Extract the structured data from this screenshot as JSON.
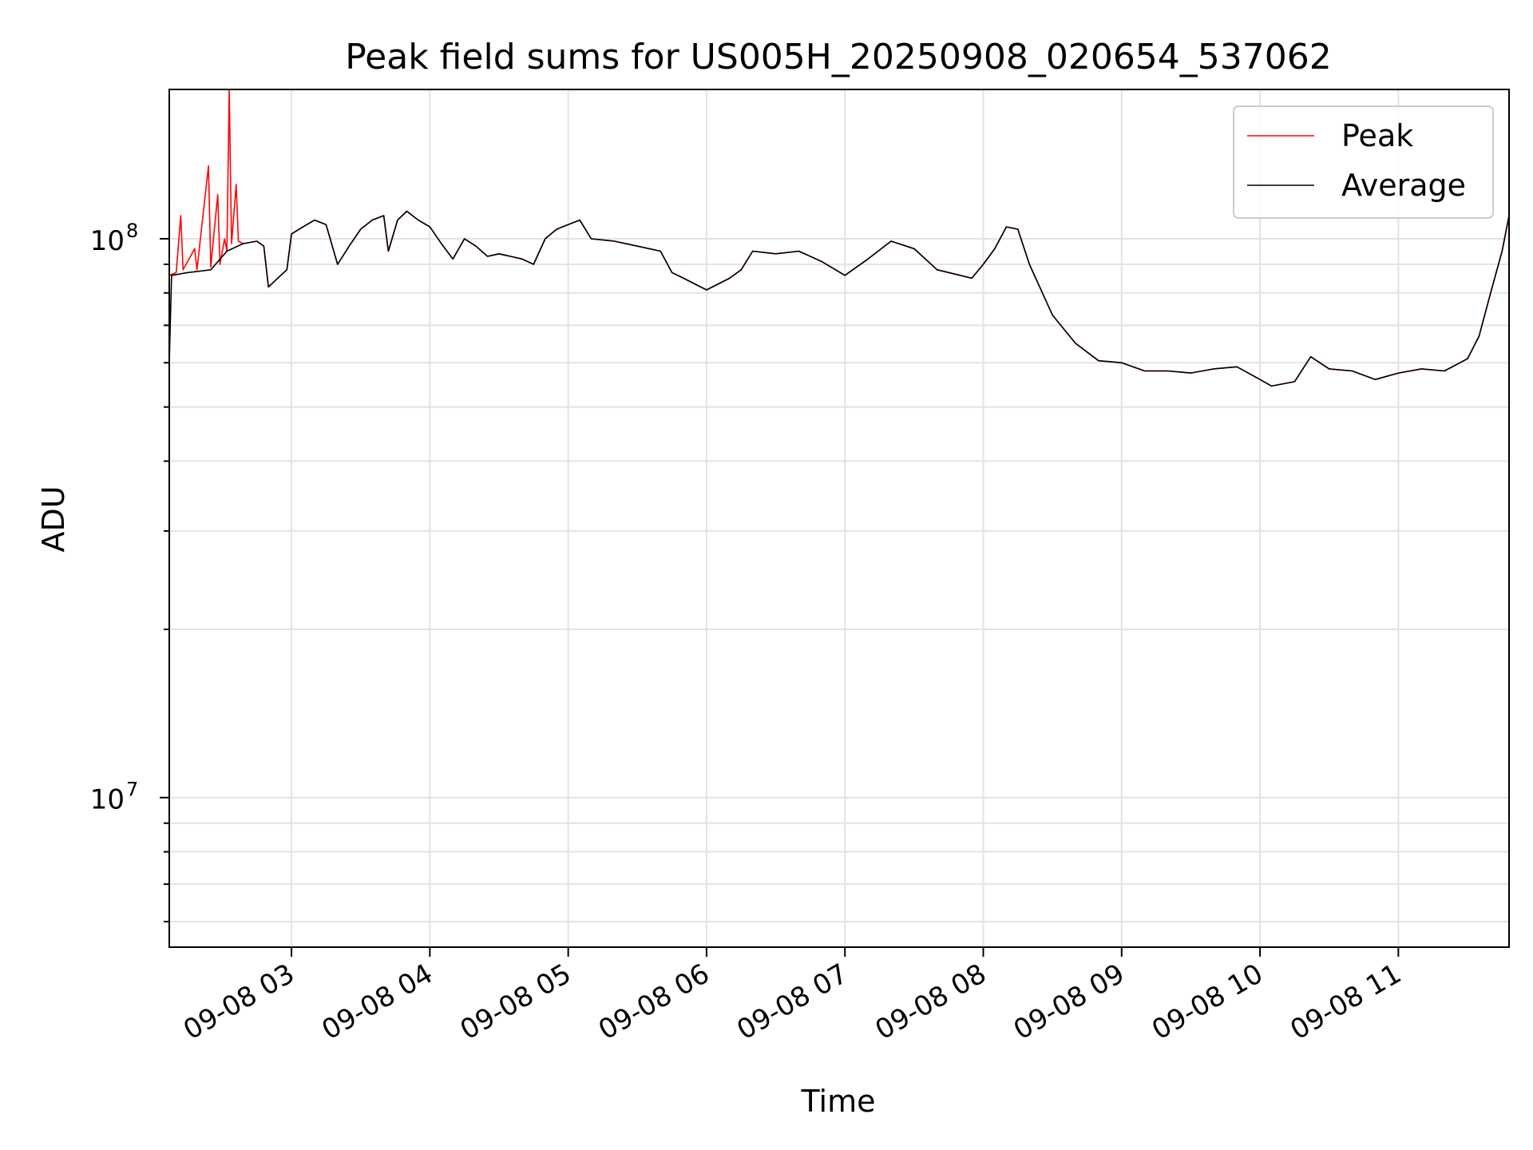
{
  "chart_data": {
    "type": "line",
    "title": "Peak field sums for US005H_20250908_020654_537062",
    "xlabel": "Time",
    "ylabel": "ADU",
    "yscale": "log",
    "ylim": [
      5400000,
      185000000
    ],
    "xlim": [
      "2025-09-08T02:07:00",
      "2025-09-08T11:48:00"
    ],
    "grid": true,
    "legend": "top-right",
    "x_ticks": [
      "09-08 03",
      "09-08 04",
      "09-08 05",
      "09-08 06",
      "09-08 07",
      "09-08 08",
      "09-08 09",
      "09-08 10",
      "09-08 11"
    ],
    "y_ticks": [
      {
        "base": "10",
        "exp": "7",
        "value": 10000000
      },
      {
        "base": "10",
        "exp": "8",
        "value": 100000000
      }
    ],
    "series": [
      {
        "name": "Peak",
        "color": "#ff0000",
        "points": [
          [
            "2025-09-08T02:07:00",
            86000000
          ],
          [
            "2025-09-08T02:10:00",
            87000000
          ],
          [
            "2025-09-08T02:12:00",
            110000000
          ],
          [
            "2025-09-08T02:13:00",
            88000000
          ],
          [
            "2025-09-08T02:18:00",
            96000000
          ],
          [
            "2025-09-08T02:19:00",
            88000000
          ],
          [
            "2025-09-08T02:24:00",
            135000000
          ],
          [
            "2025-09-08T02:25:00",
            89000000
          ],
          [
            "2025-09-08T02:28:00",
            120000000
          ],
          [
            "2025-09-08T02:29:00",
            90000000
          ],
          [
            "2025-09-08T02:31:00",
            100000000
          ],
          [
            "2025-09-08T02:32:00",
            95000000
          ],
          [
            "2025-09-08T02:33:00",
            185000000
          ],
          [
            "2025-09-08T02:34:00",
            98000000
          ],
          [
            "2025-09-08T02:36:00",
            125000000
          ],
          [
            "2025-09-08T02:37:00",
            99000000
          ],
          [
            "2025-09-08T02:39:00",
            98000000
          ],
          [
            "2025-09-08T02:45:00",
            99000000
          ],
          [
            "2025-09-08T02:48:00",
            97000000
          ],
          [
            "2025-09-08T02:50:00",
            82000000
          ],
          [
            "2025-09-08T02:54:00",
            85000000
          ],
          [
            "2025-09-08T02:58:00",
            88000000
          ],
          [
            "2025-09-08T03:00:00",
            102000000
          ],
          [
            "2025-09-08T03:05:00",
            105000000
          ],
          [
            "2025-09-08T03:10:00",
            108000000
          ],
          [
            "2025-09-08T03:15:00",
            106000000
          ],
          [
            "2025-09-08T03:20:00",
            90000000
          ],
          [
            "2025-09-08T03:25:00",
            97000000
          ],
          [
            "2025-09-08T03:30:00",
            104000000
          ],
          [
            "2025-09-08T03:35:00",
            108000000
          ],
          [
            "2025-09-08T03:40:00",
            110000000
          ],
          [
            "2025-09-08T03:42:00",
            95000000
          ],
          [
            "2025-09-08T03:46:00",
            108000000
          ],
          [
            "2025-09-08T03:50:00",
            112000000
          ],
          [
            "2025-09-08T03:55:00",
            108000000
          ],
          [
            "2025-09-08T04:00:00",
            105000000
          ],
          [
            "2025-09-08T04:05:00",
            98000000
          ],
          [
            "2025-09-08T04:10:00",
            92000000
          ],
          [
            "2025-09-08T04:15:00",
            100000000
          ],
          [
            "2025-09-08T04:20:00",
            97000000
          ],
          [
            "2025-09-08T04:25:00",
            93000000
          ],
          [
            "2025-09-08T04:30:00",
            94000000
          ],
          [
            "2025-09-08T04:35:00",
            93000000
          ],
          [
            "2025-09-08T04:40:00",
            92000000
          ],
          [
            "2025-09-08T04:45:00",
            90000000
          ],
          [
            "2025-09-08T04:50:00",
            100000000
          ],
          [
            "2025-09-08T04:55:00",
            104000000
          ],
          [
            "2025-09-08T05:00:00",
            106000000
          ],
          [
            "2025-09-08T05:05:00",
            108000000
          ],
          [
            "2025-09-08T05:10:00",
            100000000
          ],
          [
            "2025-09-08T05:20:00",
            99000000
          ],
          [
            "2025-09-08T05:30:00",
            97000000
          ],
          [
            "2025-09-08T05:40:00",
            95000000
          ],
          [
            "2025-09-08T05:45:00",
            87000000
          ],
          [
            "2025-09-08T05:50:00",
            85000000
          ],
          [
            "2025-09-08T06:00:00",
            81000000
          ],
          [
            "2025-09-08T06:10:00",
            85000000
          ],
          [
            "2025-09-08T06:15:00",
            88000000
          ],
          [
            "2025-09-08T06:20:00",
            95000000
          ],
          [
            "2025-09-08T06:30:00",
            94000000
          ],
          [
            "2025-09-08T06:40:00",
            95000000
          ],
          [
            "2025-09-08T06:50:00",
            91000000
          ],
          [
            "2025-09-08T07:00:00",
            86000000
          ],
          [
            "2025-09-08T07:10:00",
            92000000
          ],
          [
            "2025-09-08T07:20:00",
            99000000
          ],
          [
            "2025-09-08T07:30:00",
            96000000
          ],
          [
            "2025-09-08T07:40:00",
            88000000
          ],
          [
            "2025-09-08T07:50:00",
            86000000
          ],
          [
            "2025-09-08T07:55:00",
            85000000
          ],
          [
            "2025-09-08T08:00:00",
            90000000
          ],
          [
            "2025-09-08T08:05:00",
            96000000
          ],
          [
            "2025-09-08T08:10:00",
            105000000
          ],
          [
            "2025-09-08T08:15:00",
            104000000
          ],
          [
            "2025-09-08T08:20:00",
            90000000
          ],
          [
            "2025-09-08T08:30:00",
            73000000
          ],
          [
            "2025-09-08T08:40:00",
            65000000
          ],
          [
            "2025-09-08T08:50:00",
            60500000
          ],
          [
            "2025-09-08T09:00:00",
            60000000
          ],
          [
            "2025-09-08T09:10:00",
            58000000
          ],
          [
            "2025-09-08T09:20:00",
            58000000
          ],
          [
            "2025-09-08T09:30:00",
            57500000
          ],
          [
            "2025-09-08T09:40:00",
            58500000
          ],
          [
            "2025-09-08T09:50:00",
            59000000
          ],
          [
            "2025-09-08T10:00:00",
            56000000
          ],
          [
            "2025-09-08T10:05:00",
            54500000
          ],
          [
            "2025-09-08T10:10:00",
            55000000
          ],
          [
            "2025-09-08T10:15:00",
            55500000
          ],
          [
            "2025-09-08T10:22:00",
            61500000
          ],
          [
            "2025-09-08T10:30:00",
            58500000
          ],
          [
            "2025-09-08T10:40:00",
            58000000
          ],
          [
            "2025-09-08T10:50:00",
            56000000
          ],
          [
            "2025-09-08T11:00:00",
            57500000
          ],
          [
            "2025-09-08T11:10:00",
            58500000
          ],
          [
            "2025-09-08T11:20:00",
            58000000
          ],
          [
            "2025-09-08T11:30:00",
            61000000
          ],
          [
            "2025-09-08T11:35:00",
            67000000
          ],
          [
            "2025-09-08T11:40:00",
            80000000
          ],
          [
            "2025-09-08T11:45:00",
            95000000
          ],
          [
            "2025-09-08T11:48:00",
            110000000
          ]
        ]
      },
      {
        "name": "Average",
        "color": "#000000",
        "points": [
          [
            "2025-09-08T02:07:00",
            60000000
          ],
          [
            "2025-09-08T02:08:00",
            86000000
          ],
          [
            "2025-09-08T02:15:00",
            87000000
          ],
          [
            "2025-09-08T02:25:00",
            88000000
          ],
          [
            "2025-09-08T02:32:00",
            95000000
          ],
          [
            "2025-09-08T02:39:00",
            98000000
          ],
          [
            "2025-09-08T02:45:00",
            99000000
          ],
          [
            "2025-09-08T02:48:00",
            97000000
          ],
          [
            "2025-09-08T02:50:00",
            82000000
          ],
          [
            "2025-09-08T02:54:00",
            85000000
          ],
          [
            "2025-09-08T02:58:00",
            88000000
          ],
          [
            "2025-09-08T03:00:00",
            102000000
          ],
          [
            "2025-09-08T03:05:00",
            105000000
          ],
          [
            "2025-09-08T03:10:00",
            108000000
          ],
          [
            "2025-09-08T03:15:00",
            106000000
          ],
          [
            "2025-09-08T03:20:00",
            90000000
          ],
          [
            "2025-09-08T03:25:00",
            97000000
          ],
          [
            "2025-09-08T03:30:00",
            104000000
          ],
          [
            "2025-09-08T03:35:00",
            108000000
          ],
          [
            "2025-09-08T03:40:00",
            110000000
          ],
          [
            "2025-09-08T03:42:00",
            95000000
          ],
          [
            "2025-09-08T03:46:00",
            108000000
          ],
          [
            "2025-09-08T03:50:00",
            112000000
          ],
          [
            "2025-09-08T03:55:00",
            108000000
          ],
          [
            "2025-09-08T04:00:00",
            105000000
          ],
          [
            "2025-09-08T04:05:00",
            98000000
          ],
          [
            "2025-09-08T04:10:00",
            92000000
          ],
          [
            "2025-09-08T04:15:00",
            100000000
          ],
          [
            "2025-09-08T04:20:00",
            97000000
          ],
          [
            "2025-09-08T04:25:00",
            93000000
          ],
          [
            "2025-09-08T04:30:00",
            94000000
          ],
          [
            "2025-09-08T04:35:00",
            93000000
          ],
          [
            "2025-09-08T04:40:00",
            92000000
          ],
          [
            "2025-09-08T04:45:00",
            90000000
          ],
          [
            "2025-09-08T04:50:00",
            100000000
          ],
          [
            "2025-09-08T04:55:00",
            104000000
          ],
          [
            "2025-09-08T05:00:00",
            106000000
          ],
          [
            "2025-09-08T05:05:00",
            108000000
          ],
          [
            "2025-09-08T05:10:00",
            100000000
          ],
          [
            "2025-09-08T05:20:00",
            99000000
          ],
          [
            "2025-09-08T05:30:00",
            97000000
          ],
          [
            "2025-09-08T05:40:00",
            95000000
          ],
          [
            "2025-09-08T05:45:00",
            87000000
          ],
          [
            "2025-09-08T05:50:00",
            85000000
          ],
          [
            "2025-09-08T06:00:00",
            81000000
          ],
          [
            "2025-09-08T06:10:00",
            85000000
          ],
          [
            "2025-09-08T06:15:00",
            88000000
          ],
          [
            "2025-09-08T06:20:00",
            95000000
          ],
          [
            "2025-09-08T06:30:00",
            94000000
          ],
          [
            "2025-09-08T06:40:00",
            95000000
          ],
          [
            "2025-09-08T06:50:00",
            91000000
          ],
          [
            "2025-09-08T07:00:00",
            86000000
          ],
          [
            "2025-09-08T07:10:00",
            92000000
          ],
          [
            "2025-09-08T07:20:00",
            99000000
          ],
          [
            "2025-09-08T07:30:00",
            96000000
          ],
          [
            "2025-09-08T07:40:00",
            88000000
          ],
          [
            "2025-09-08T07:50:00",
            86000000
          ],
          [
            "2025-09-08T07:55:00",
            85000000
          ],
          [
            "2025-09-08T08:00:00",
            90000000
          ],
          [
            "2025-09-08T08:05:00",
            96000000
          ],
          [
            "2025-09-08T08:10:00",
            105000000
          ],
          [
            "2025-09-08T08:15:00",
            104000000
          ],
          [
            "2025-09-08T08:20:00",
            90000000
          ],
          [
            "2025-09-08T08:30:00",
            73000000
          ],
          [
            "2025-09-08T08:40:00",
            65000000
          ],
          [
            "2025-09-08T08:50:00",
            60500000
          ],
          [
            "2025-09-08T09:00:00",
            60000000
          ],
          [
            "2025-09-08T09:10:00",
            58000000
          ],
          [
            "2025-09-08T09:20:00",
            58000000
          ],
          [
            "2025-09-08T09:30:00",
            57500000
          ],
          [
            "2025-09-08T09:40:00",
            58500000
          ],
          [
            "2025-09-08T09:50:00",
            59000000
          ],
          [
            "2025-09-08T10:00:00",
            56000000
          ],
          [
            "2025-09-08T10:05:00",
            54500000
          ],
          [
            "2025-09-08T10:10:00",
            55000000
          ],
          [
            "2025-09-08T10:15:00",
            55500000
          ],
          [
            "2025-09-08T10:22:00",
            61500000
          ],
          [
            "2025-09-08T10:30:00",
            58500000
          ],
          [
            "2025-09-08T10:40:00",
            58000000
          ],
          [
            "2025-09-08T10:50:00",
            56000000
          ],
          [
            "2025-09-08T11:00:00",
            57500000
          ],
          [
            "2025-09-08T11:10:00",
            58500000
          ],
          [
            "2025-09-08T11:20:00",
            58000000
          ],
          [
            "2025-09-08T11:30:00",
            61000000
          ],
          [
            "2025-09-08T11:35:00",
            67000000
          ],
          [
            "2025-09-08T11:40:00",
            80000000
          ],
          [
            "2025-09-08T11:45:00",
            95000000
          ],
          [
            "2025-09-08T11:48:00",
            110000000
          ]
        ]
      }
    ]
  }
}
